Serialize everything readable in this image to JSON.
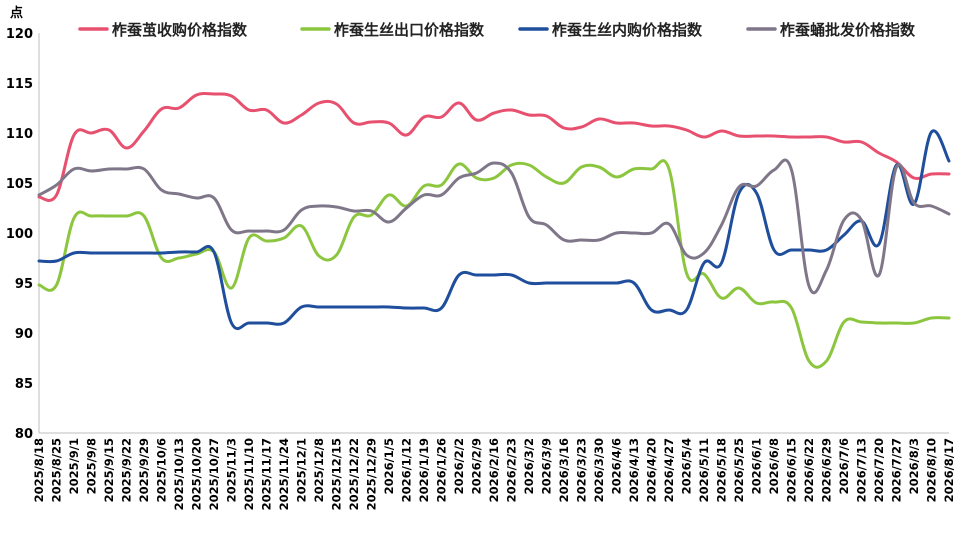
{
  "chart_data": {
    "type": "line",
    "ylabel": "点",
    "ylim": [
      80,
      120
    ],
    "yticks": [
      80,
      85,
      90,
      95,
      100,
      105,
      110,
      115,
      120
    ],
    "grid": false,
    "legend_position": "top",
    "x": [
      "2025/8/18",
      "2025/8/25",
      "2025/9/1",
      "2025/9/8",
      "2025/9/15",
      "2025/9/22",
      "2025/9/29",
      "2025/10/6",
      "2025/10/13",
      "2025/10/20",
      "2025/10/27",
      "2025/11/3",
      "2025/11/10",
      "2025/11/17",
      "2025/11/24",
      "2025/12/1",
      "2025/12/8",
      "2025/12/15",
      "2025/12/22",
      "2025/12/29",
      "2026/1/5",
      "2026/1/12",
      "2026/1/19",
      "2026/1/26",
      "2026/2/2",
      "2026/2/9",
      "2026/2/16",
      "2026/2/23",
      "2026/3/2",
      "2026/3/9",
      "2026/3/16",
      "2026/3/23",
      "2026/3/30",
      "2026/4/6",
      "2026/4/13",
      "2026/4/20",
      "2026/4/27",
      "2026/5/4",
      "2026/5/11",
      "2026/5/18",
      "2026/5/25",
      "2026/6/1",
      "2026/6/8",
      "2026/6/15",
      "2026/6/22",
      "2026/6/29",
      "2026/7/6",
      "2026/7/13",
      "2026/7/20",
      "2026/7/27",
      "2026/8/3",
      "2026/8/10",
      "2026/8/17"
    ],
    "x_label_step": 1,
    "series": [
      {
        "name": "柞蚕茧收购价格指数",
        "color": "#e8506f",
        "values": [
          103.6,
          103.8,
          109.8,
          110.0,
          110.3,
          108.5,
          110.2,
          112.4,
          112.5,
          113.8,
          113.9,
          113.7,
          112.3,
          112.3,
          111.0,
          111.8,
          113.0,
          112.9,
          111.0,
          111.1,
          111.0,
          109.8,
          111.6,
          111.6,
          113.0,
          111.3,
          112.0,
          112.3,
          111.8,
          111.7,
          110.5,
          110.6,
          111.4,
          111.0,
          111.0,
          110.7,
          110.7,
          110.3,
          109.6,
          110.2,
          109.7,
          109.7,
          109.7,
          109.6,
          109.6,
          109.6,
          109.1,
          109.1,
          108.0,
          107.1,
          105.5,
          105.9,
          105.9
        ]
      },
      {
        "name": "柞蚕生丝出口价格指数",
        "color": "#8cc63f",
        "values": [
          94.8,
          94.8,
          101.5,
          101.7,
          101.7,
          101.7,
          101.7,
          97.5,
          97.5,
          97.9,
          98.1,
          94.5,
          99.5,
          99.2,
          99.5,
          100.7,
          97.7,
          97.8,
          101.6,
          101.8,
          103.8,
          102.7,
          104.7,
          104.8,
          106.9,
          105.5,
          105.5,
          106.8,
          106.8,
          105.6,
          105.0,
          106.6,
          106.6,
          105.6,
          106.4,
          106.4,
          106.4,
          96.0,
          95.9,
          93.5,
          94.5,
          93.0,
          93.1,
          92.5,
          87.2,
          87.2,
          91.1,
          91.1,
          91.0,
          91.0,
          91.0,
          91.5,
          91.5
        ]
      },
      {
        "name": "柞蚕生丝内购价格指数",
        "color": "#1f4e9c",
        "values": [
          97.2,
          97.2,
          98.0,
          98.0,
          98.0,
          98.0,
          98.0,
          98.0,
          98.1,
          98.1,
          98.1,
          91.0,
          91.0,
          91.0,
          91.0,
          92.6,
          92.6,
          92.6,
          92.6,
          92.6,
          92.6,
          92.5,
          92.5,
          92.5,
          95.8,
          95.8,
          95.8,
          95.8,
          95.0,
          95.0,
          95.0,
          95.0,
          95.0,
          95.0,
          95.0,
          92.3,
          92.3,
          92.3,
          97.0,
          97.0,
          104.0,
          104.0,
          98.3,
          98.3,
          98.3,
          98.3,
          99.8,
          101.2,
          98.9,
          106.8,
          102.9,
          110.1,
          107.2
        ]
      },
      {
        "name": "柞蚕蛹批发价格指数",
        "color": "#7f7789",
        "values": [
          103.8,
          104.8,
          106.4,
          106.2,
          106.4,
          106.4,
          106.4,
          104.3,
          103.9,
          103.5,
          103.5,
          100.3,
          100.2,
          100.2,
          100.3,
          102.3,
          102.7,
          102.6,
          102.2,
          102.2,
          101.1,
          102.5,
          103.8,
          103.8,
          105.5,
          106.0,
          107.0,
          106.0,
          101.6,
          100.8,
          99.3,
          99.3,
          99.3,
          100.0,
          100.0,
          100.0,
          100.9,
          97.8,
          98.0,
          100.8,
          104.6,
          104.7,
          106.3,
          106.3,
          94.7,
          96.3,
          101.3,
          101.3,
          95.8,
          106.6,
          103.0,
          102.7,
          101.9
        ]
      }
    ]
  }
}
